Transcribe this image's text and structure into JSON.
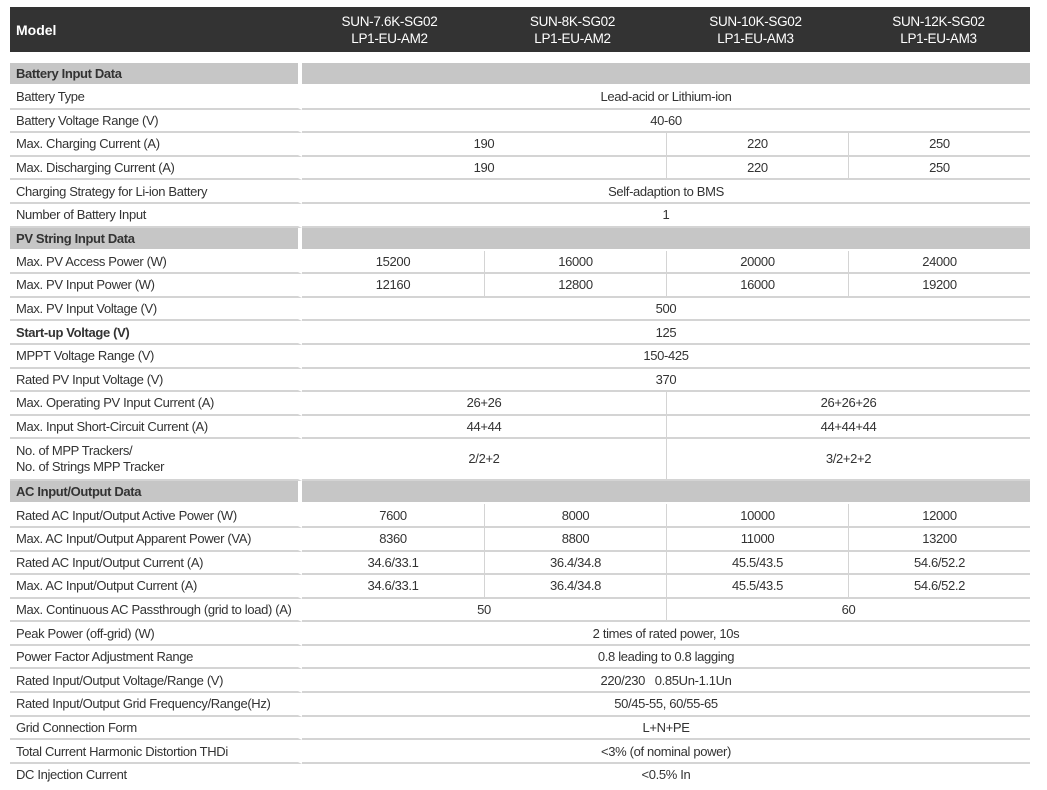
{
  "header": {
    "label": "Model",
    "models": [
      {
        "line1": "SUN-7.6K-SG02",
        "line2": "LP1-EU-AM2"
      },
      {
        "line1": "SUN-8K-SG02",
        "line2": "LP1-EU-AM2"
      },
      {
        "line1": "SUN-10K-SG02",
        "line2": "LP1-EU-AM3"
      },
      {
        "line1": "SUN-12K-SG02",
        "line2": "LP1-EU-AM3"
      }
    ]
  },
  "rows": [
    {
      "section": "Battery Input Data"
    },
    {
      "label": "Battery Type",
      "values": [
        "Lead-acid or Lithium-ion",
        "Lead-acid or Lithium-ion",
        "Lead-acid or Lithium-ion",
        "Lead-acid or Lithium-ion"
      ]
    },
    {
      "label": "Battery Voltage Range (V)",
      "values": [
        "40-60",
        "40-60",
        "40-60",
        "40-60"
      ]
    },
    {
      "label": "Max. Charging Current (A)",
      "values": [
        "190",
        "190",
        "220",
        "250"
      ]
    },
    {
      "label": "Max. Discharging Current (A)",
      "values": [
        "190",
        "190",
        "220",
        "250"
      ]
    },
    {
      "label": "Charging Strategy for Li-ion Battery",
      "values": [
        "Self-adaption to BMS",
        "Self-adaption to BMS",
        "Self-adaption to BMS",
        "Self-adaption to BMS"
      ]
    },
    {
      "label": "Number of Battery Input",
      "values": [
        "1",
        "1",
        "1",
        "1"
      ]
    },
    {
      "section": "PV String Input Data"
    },
    {
      "label": "Max. PV Access Power (W)",
      "values": [
        "15200",
        "16000",
        "20000",
        "24000"
      ]
    },
    {
      "label": "Max. PV Input Power (W)",
      "values": [
        "12160",
        "12800",
        "16000",
        "19200"
      ]
    },
    {
      "label": "Max. PV Input Voltage (V)",
      "values": [
        "500",
        "500",
        "500",
        "500"
      ]
    },
    {
      "label": "Start-up Voltage (V)",
      "bold": true,
      "values": [
        "125",
        "125",
        "125",
        "125"
      ]
    },
    {
      "label": "MPPT  Voltage Range (V)",
      "values": [
        "150-425",
        "150-425",
        "150-425",
        "150-425"
      ]
    },
    {
      "label": "Rated PV Input Voltage (V)",
      "values": [
        "370",
        "370",
        "370",
        "370"
      ]
    },
    {
      "label": "Max. Operating PV Input Current (A)",
      "values": [
        "26+26",
        "26+26",
        "26+26+26",
        "26+26+26"
      ]
    },
    {
      "label": "Max. Input Short-Circuit Current (A)",
      "values": [
        "44+44",
        "44+44",
        "44+44+44",
        "44+44+44"
      ]
    },
    {
      "label": "No. of MPP Trackers/",
      "label2": "No. of Strings MPP Tracker",
      "values": [
        "2/2+2",
        "2/2+2",
        "3/2+2+2",
        "3/2+2+2"
      ]
    },
    {
      "section": "AC Input/Output Data"
    },
    {
      "label": "Rated AC Input/Output Active Power (W)",
      "values": [
        "7600",
        "8000",
        "10000",
        "12000"
      ]
    },
    {
      "label": "Max. AC Input/Output Apparent Power (VA)",
      "values": [
        "8360",
        "8800",
        "11000",
        "13200"
      ]
    },
    {
      "label": "Rated AC Input/Output Current (A)",
      "values": [
        "34.6/33.1",
        "36.4/34.8",
        "45.5/43.5",
        "54.6/52.2"
      ]
    },
    {
      "label": "Max. AC Input/Output Current (A)",
      "values": [
        "34.6/33.1",
        "36.4/34.8",
        "45.5/43.5",
        "54.6/52.2"
      ]
    },
    {
      "label": "Max. Continuous AC Passthrough (grid to load) (A)",
      "values": [
        "50",
        "50",
        "60",
        "60"
      ]
    },
    {
      "label": "Peak Power (off-grid) (W)",
      "values": [
        "2 times of rated power, 10s",
        "2 times of rated power, 10s",
        "2 times of rated power, 10s",
        "2 times of rated power, 10s"
      ]
    },
    {
      "label": "Power Factor Adjustment Range",
      "values": [
        "0.8 leading to 0.8 lagging",
        "0.8 leading to 0.8 lagging",
        "0.8 leading to 0.8 lagging",
        "0.8 leading to 0.8 lagging"
      ]
    },
    {
      "label": "Rated Input/Output Voltage/Range (V)",
      "values": [
        "220/230   0.85Un-1.1Un",
        "220/230   0.85Un-1.1Un",
        "220/230   0.85Un-1.1Un",
        "220/230   0.85Un-1.1Un"
      ]
    },
    {
      "label": "Rated Input/Output Grid Frequency/Range(Hz)",
      "values": [
        "50/45-55, 60/55-65",
        "50/45-55, 60/55-65",
        "50/45-55, 60/55-65",
        "50/45-55, 60/55-65"
      ]
    },
    {
      "label": "Grid Connection Form",
      "values": [
        "L+N+PE",
        "L+N+PE",
        "L+N+PE",
        "L+N+PE"
      ]
    },
    {
      "label": "Total Current Harmonic Distortion THDi",
      "values": [
        "<3% (of nominal power)",
        "<3% (of nominal power)",
        "<3% (of nominal power)",
        "<3% (of nominal power)"
      ]
    },
    {
      "label": "DC Injection Current",
      "values": [
        "<0.5% In",
        "<0.5% In",
        "<0.5% In",
        "<0.5% In"
      ]
    }
  ]
}
